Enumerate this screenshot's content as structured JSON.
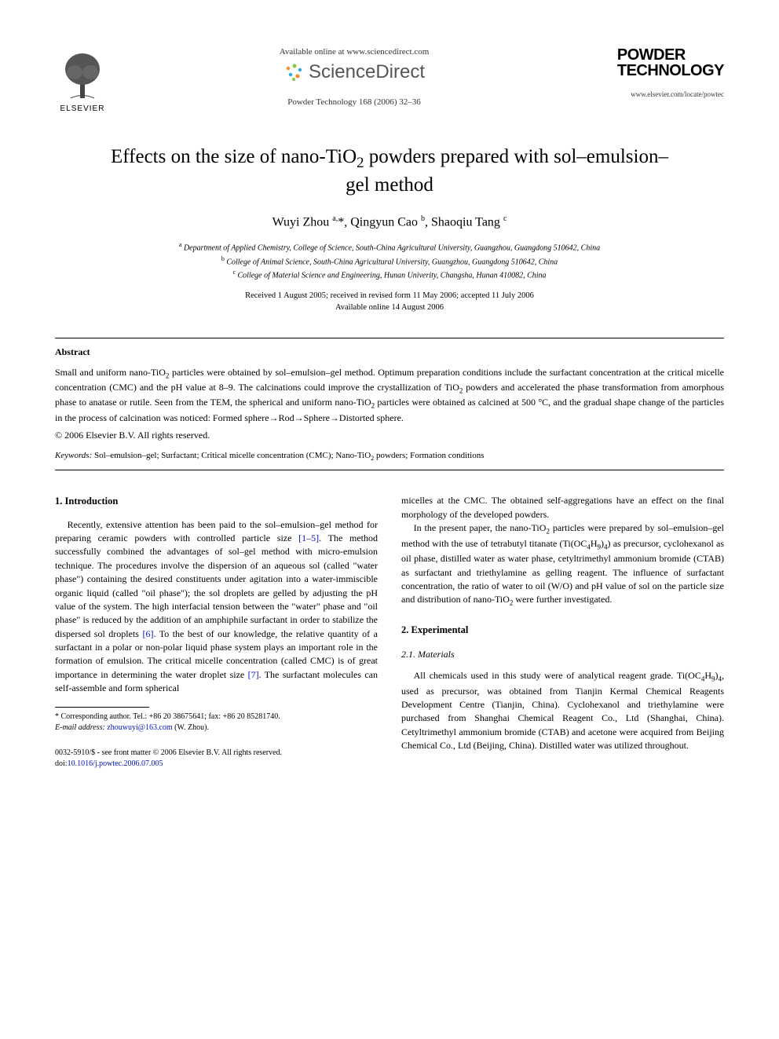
{
  "header": {
    "elsevier_label": "ELSEVIER",
    "available_text": "Available online at www.sciencedirect.com",
    "sciencedirect_label": "ScienceDirect",
    "journal_ref": "Powder Technology 168 (2006) 32–36",
    "journal_logo_line1": "POWDER",
    "journal_logo_line2": "TECHNOLOGY",
    "journal_url": "www.elsevier.com/locate/powtec"
  },
  "article": {
    "title_html": "Effects on the size of nano-TiO<sub>2</sub> powders prepared with sol–emulsion–gel method",
    "authors_html": "Wuyi Zhou <sup>a,</sup>*, Qingyun Cao <sup>b</sup>, Shaoqiu Tang <sup>c</sup>",
    "affiliations": [
      "<sup>a</sup> Department of Applied Chemistry, College of Science, South-China Agricultural University, Guangzhou, Guangdong 510642, China",
      "<sup>b</sup> College of Animal Science, South-China Agricultural University, Guangzhou, Guangdong 510642, China",
      "<sup>c</sup> College of Material Science and Engineering, Hunan Univerity, Changsha, Hunan 410082, China"
    ],
    "dates_line1": "Received 1 August 2005; received in revised form 11 May 2006; accepted 11 July 2006",
    "dates_line2": "Available online 14 August 2006"
  },
  "abstract": {
    "heading": "Abstract",
    "text_html": "Small and uniform nano-TiO<sub>2</sub> particles were obtained by sol–emulsion–gel method. Optimum preparation conditions include the surfactant concentration at the critical micelle concentration (CMC) and the pH value at 8–9. The calcinations could improve the crystallization of TiO<sub>2</sub> powders and accelerated the phase transformation from amorphous phase to anatase or rutile. Seen from the TEM, the spherical and uniform nano-TiO<sub>2</sub> particles were obtained as calcined at 500 °C, and the gradual shape change of the particles in the process of calcination was noticed: Formed sphere→Rod→Sphere→Distorted sphere.",
    "copyright": "© 2006 Elsevier B.V. All rights reserved.",
    "keywords_label": "Keywords:",
    "keywords_text_html": " Sol–emulsion–gel; Surfactant; Critical micelle concentration (CMC); Nano-TiO<sub>2</sub> powders; Formation conditions"
  },
  "body": {
    "section1_heading": "1. Introduction",
    "intro_p1_html": "Recently, extensive attention has been paid to the sol–emulsion–gel method for preparing ceramic powders with controlled particle size <span class=\"ref-link\">[1–5]</span>. The method successfully combined the advantages of sol–gel method with micro-emulsion technique. The procedures involve the dispersion of an aqueous sol (called \"water phase\") containing the desired constituents under agitation into a water-immiscible organic liquid (called \"oil phase\"); the sol droplets are gelled by adjusting the pH value of the system. The high interfacial tension between the \"water\" phase and \"oil phase\" is reduced by the addition of an amphiphile surfactant in order to stabilize the dispersed sol droplets <span class=\"ref-link\">[6]</span>. To the best of our knowledge, the relative quantity of a surfactant in a polar or non-polar liquid phase system plays an important role in the formation of emulsion. The critical micelle concentration (called CMC) is of great importance in determining the water droplet size <span class=\"ref-link\">[7]</span>. The surfactant molecules can self-assemble and form spherical",
    "intro_p2_col2": "micelles at the CMC. The obtained self-aggregations have an effect on the final morphology of the developed powders.",
    "intro_p3_html": "In the present paper, the nano-TiO<sub>2</sub> particles were prepared by sol–emulsion–gel method with the use of tetrabutyl titanate (Ti(OC<sub>4</sub>H<sub>9</sub>)<sub>4</sub>) as precursor, cyclohexanol as oil phase, distilled water as water phase, cetyltrimethyl ammonium bromide (CTAB) as surfactant and triethylamine as gelling reagent. The influence of surfactant concentration, the ratio of water to oil (W/O) and pH value of sol on the particle size and distribution of nano-TiO<sub>2</sub> were further investigated.",
    "section2_heading": "2. Experimental",
    "subsection21_heading": "2.1. Materials",
    "materials_p_html": "All chemicals used in this study were of analytical reagent grade. Ti(OC<sub>4</sub>H<sub>9</sub>)<sub>4</sub>, used as precursor, was obtained from Tianjin Kermal Chemical Reagents Development Centre (Tianjin, China). Cyclohexanol and triethylamine were purchased from Shanghai Chemical Reagent Co., Ltd (Shanghai, China). Cetyltrimethyl ammonium bromide (CTAB) and acetone were acquired from Beijing Chemical Co., Ltd (Beijing, China). Distilled water was utilized throughout."
  },
  "footnote": {
    "corresponding": "* Corresponding author. Tel.: +86 20 38675641; fax: +86 20 85281740.",
    "email_label": "E-mail address:",
    "email": "zhouwuyi@163.com",
    "email_suffix": " (W. Zhou)."
  },
  "bottom": {
    "issn": "0032-5910/$ - see front matter © 2006 Elsevier B.V. All rights reserved.",
    "doi_prefix": "doi:",
    "doi": "10.1016/j.powtec.2006.07.005"
  },
  "colors": {
    "link": "#0015bd",
    "text": "#000000",
    "bg": "#ffffff",
    "sd_orange": "#f68b1f",
    "sd_green": "#8cc63f",
    "sd_blue": "#29abe2"
  }
}
